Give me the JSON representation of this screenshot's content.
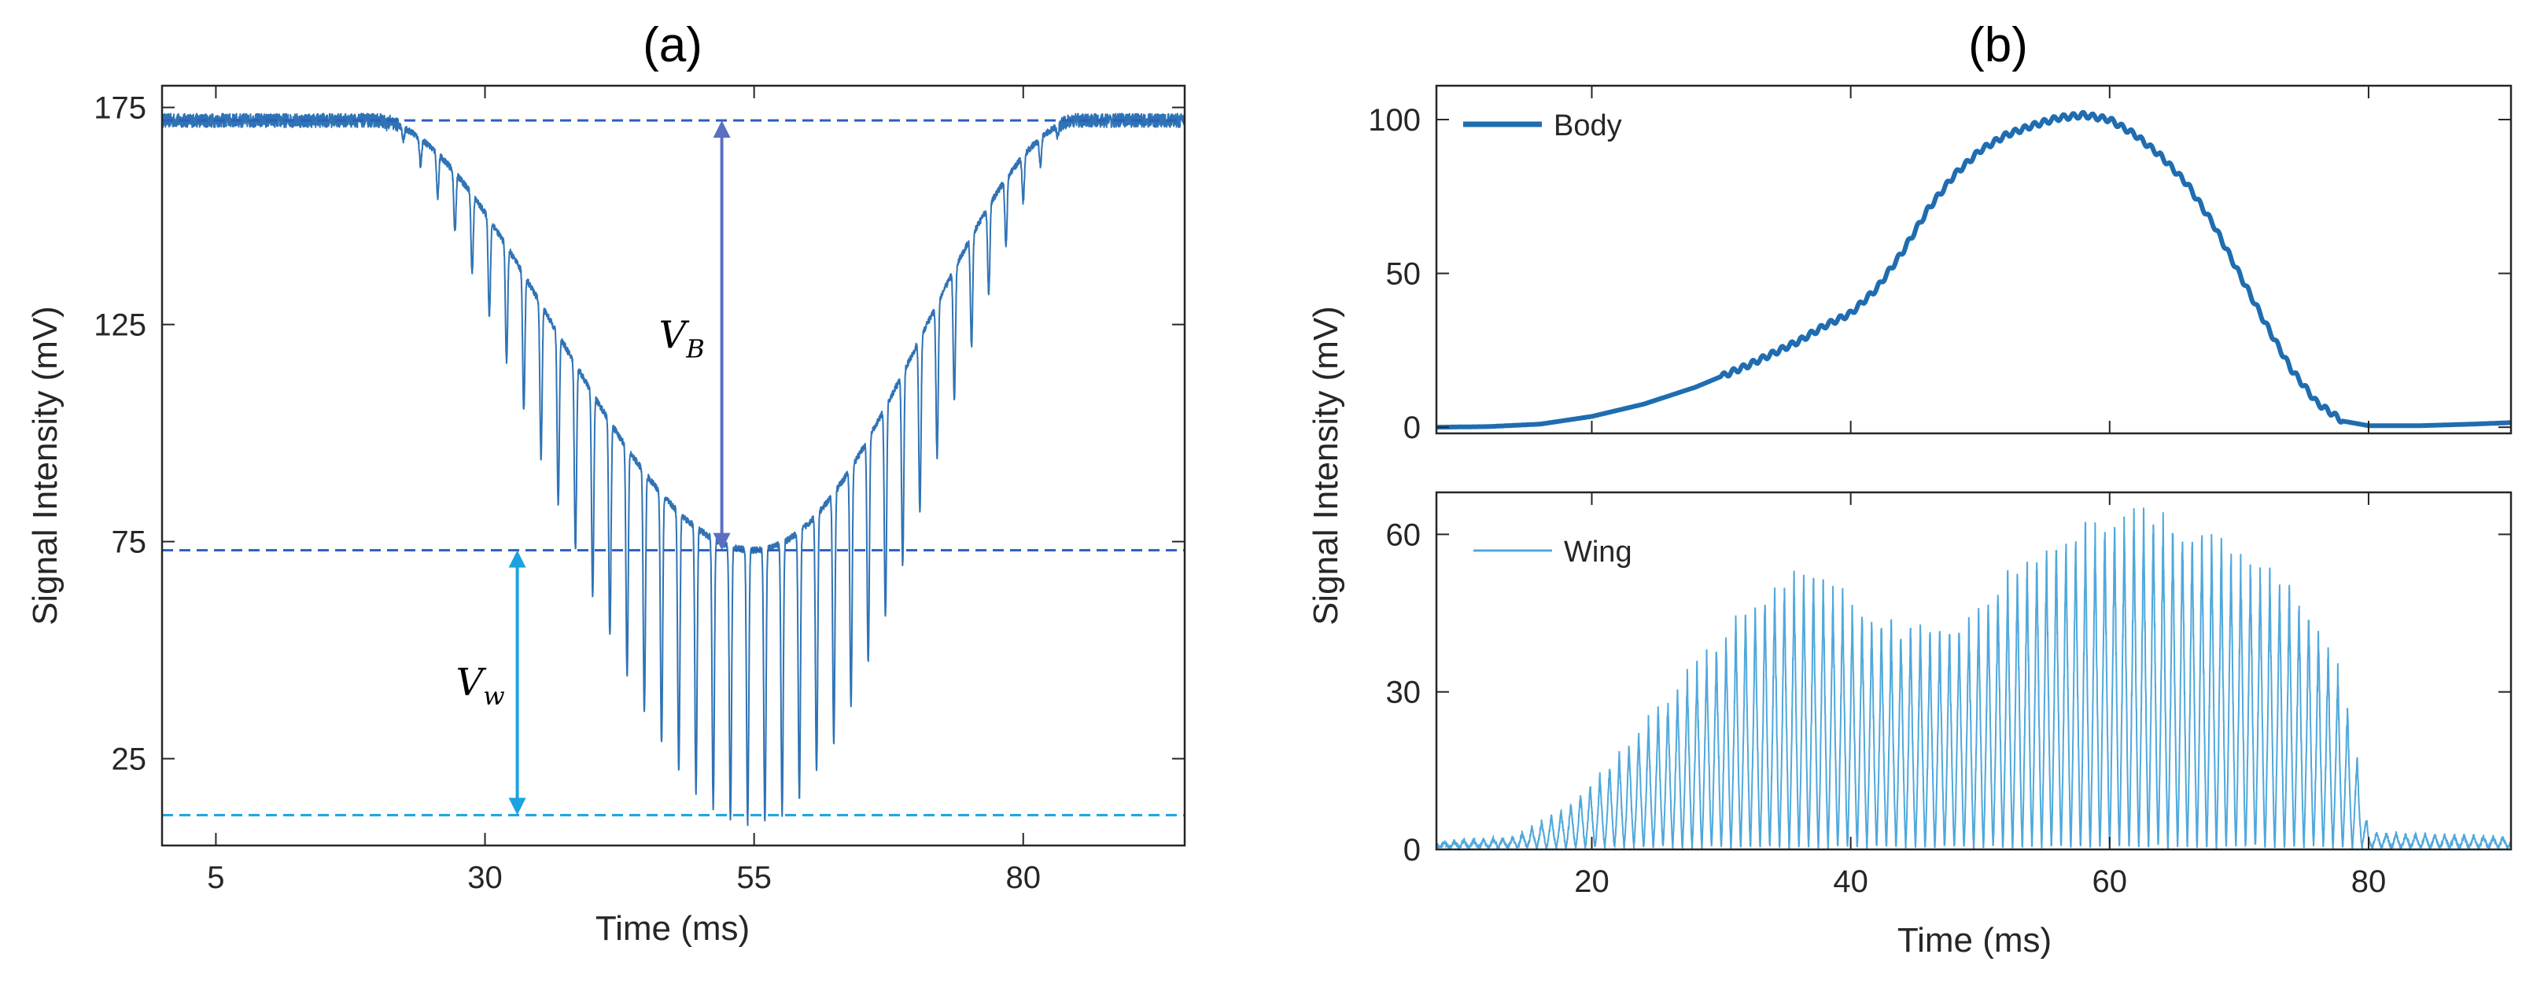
{
  "chart_data": [
    {
      "panel": "(a)",
      "type": "line",
      "title": "(a)",
      "xlabel": "Time (ms)",
      "ylabel": "Signal Intensity (mV)",
      "xlim": [
        0,
        95
      ],
      "ylim": [
        5,
        180
      ],
      "xticks": [
        5,
        30,
        55,
        80
      ],
      "yticks": [
        25,
        75,
        125,
        175
      ],
      "signal": {
        "baseline_mV": 172,
        "dip_start_ms": 20,
        "dip_end_ms": 85,
        "upper_envelope_min_mV": 73,
        "lower_envelope_min_mV": 10,
        "upper_envelope_min_at_ms": 54,
        "lower_envelope_min_at_ms": 55,
        "oscillation_period_ms": 1.6,
        "color": "#2f73b5"
      },
      "reference_lines": [
        {
          "name": "baseline",
          "y": 172,
          "color": "#2a5fbd"
        },
        {
          "name": "body-level",
          "y": 73,
          "color": "#2a5fbd"
        },
        {
          "name": "wing-level",
          "y": 12,
          "color": "#1aa3e0"
        }
      ],
      "annotations": [
        {
          "symbol": "V",
          "subscript": "B",
          "x": 52,
          "y_from": 172,
          "y_to": 73,
          "color": "#5a6fc0"
        },
        {
          "symbol": "V",
          "subscript": "w",
          "x": 33,
          "y_from": 73,
          "y_to": 12,
          "color": "#1aa3e0"
        }
      ]
    },
    {
      "panel": "(b) top",
      "type": "line",
      "title": "(b)",
      "xlabel": "",
      "ylabel": "Signal Intensity (mV)",
      "xlim": [
        8,
        91
      ],
      "ylim": [
        -2,
        111
      ],
      "yticks": [
        0,
        50,
        100
      ],
      "series": [
        {
          "name": "Body",
          "color": "#1f6db0",
          "x": [
            8,
            12,
            16,
            20,
            24,
            28,
            32,
            36,
            38,
            40,
            42,
            44,
            46,
            48,
            50,
            52,
            54,
            56,
            58,
            60,
            62,
            64,
            66,
            68,
            70,
            72,
            74,
            76,
            78,
            80,
            84,
            88,
            91
          ],
          "y": [
            0,
            0.2,
            1,
            3.5,
            7.5,
            13,
            20,
            28,
            33,
            37,
            45,
            57,
            71,
            82,
            90,
            95,
            98,
            100.5,
            101.5,
            100,
            95,
            88,
            79,
            66,
            50,
            34,
            19,
            8,
            2,
            0.5,
            0.5,
            1,
            1.5
          ]
        }
      ]
    },
    {
      "panel": "(b) bottom",
      "type": "line",
      "title": "",
      "xlabel": "Time (ms)",
      "ylabel": "Signal Intensity (mV)",
      "xlim": [
        8,
        91
      ],
      "ylim": [
        0,
        68
      ],
      "xticks": [
        20,
        40,
        60,
        80
      ],
      "yticks": [
        0,
        30,
        60
      ],
      "series": [
        {
          "name": "Wing",
          "color": "#4fa8dc",
          "oscillation_period_ms": 0.75,
          "envelope_x": [
            8,
            14,
            18,
            22,
            26,
            30,
            34,
            36,
            38,
            40,
            42,
            44,
            46,
            48,
            50,
            52,
            54,
            56,
            58,
            60,
            62,
            64,
            66,
            68,
            70,
            72,
            74,
            76,
            78,
            79,
            80,
            91
          ],
          "envelope_y": [
            1,
            2,
            8,
            18,
            30,
            42,
            51,
            54,
            53,
            49,
            45,
            44,
            43,
            44,
            47,
            54,
            58,
            61,
            63,
            65,
            67,
            66,
            64,
            62,
            58,
            55,
            51,
            44,
            33,
            20,
            3,
            2
          ]
        }
      ]
    }
  ]
}
